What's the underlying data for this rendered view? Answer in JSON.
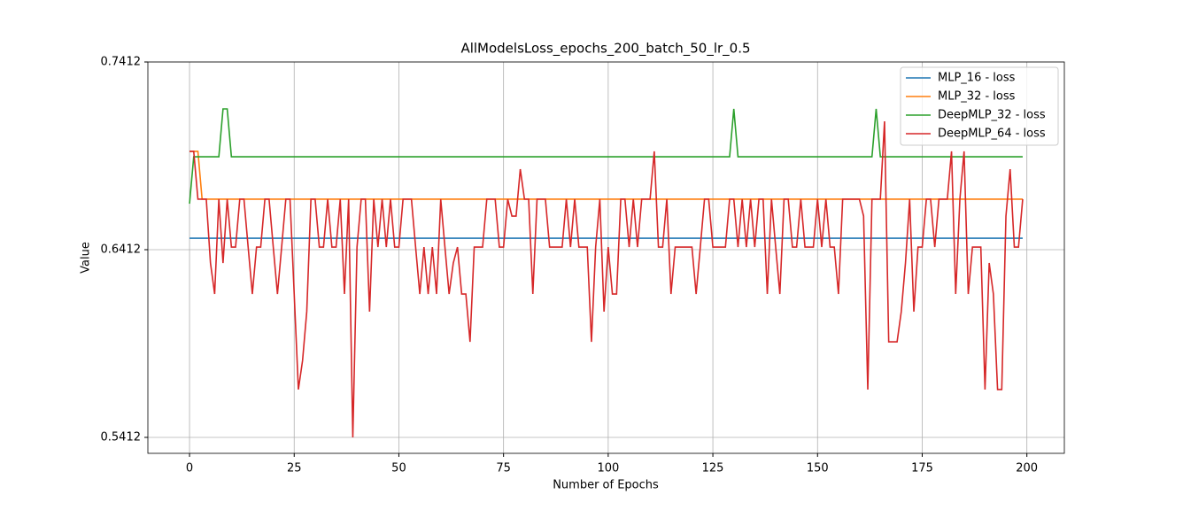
{
  "chart_data": {
    "type": "line",
    "title": "AllModelsLoss_epochs_200_batch_50_lr_0.5",
    "xlabel": "Number of Epochs",
    "ylabel": "Value",
    "xlim": [
      -9.95,
      208.95
    ],
    "ylim": [
      0.5327,
      0.7412
    ],
    "xticks": [
      0,
      25,
      50,
      75,
      100,
      125,
      150,
      175,
      200
    ],
    "yticks": [
      0.5412,
      0.6412,
      0.7412
    ],
    "grid": true,
    "legend": "upper right",
    "x": [
      0,
      1,
      2,
      3,
      4,
      5,
      6,
      7,
      8,
      9,
      10,
      11,
      12,
      13,
      14,
      15,
      16,
      17,
      18,
      19,
      20,
      21,
      22,
      23,
      24,
      25,
      26,
      27,
      28,
      29,
      30,
      31,
      32,
      33,
      34,
      35,
      36,
      37,
      38,
      39,
      40,
      41,
      42,
      43,
      44,
      45,
      46,
      47,
      48,
      49,
      50,
      51,
      52,
      53,
      54,
      55,
      56,
      57,
      58,
      59,
      60,
      61,
      62,
      63,
      64,
      65,
      66,
      67,
      68,
      69,
      70,
      71,
      72,
      73,
      74,
      75,
      76,
      77,
      78,
      79,
      80,
      81,
      82,
      83,
      84,
      85,
      86,
      87,
      88,
      89,
      90,
      91,
      92,
      93,
      94,
      95,
      96,
      97,
      98,
      99,
      100,
      101,
      102,
      103,
      104,
      105,
      106,
      107,
      108,
      109,
      110,
      111,
      112,
      113,
      114,
      115,
      116,
      117,
      118,
      119,
      120,
      121,
      122,
      123,
      124,
      125,
      126,
      127,
      128,
      129,
      130,
      131,
      132,
      133,
      134,
      135,
      136,
      137,
      138,
      139,
      140,
      141,
      142,
      143,
      144,
      145,
      146,
      147,
      148,
      149,
      150,
      151,
      152,
      153,
      154,
      155,
      156,
      157,
      158,
      159,
      160,
      161,
      162,
      163,
      164,
      165,
      166,
      167,
      168,
      169,
      170,
      171,
      172,
      173,
      174,
      175,
      176,
      177,
      178,
      179,
      180,
      181,
      182,
      183,
      184,
      185,
      186,
      187,
      188,
      189,
      190,
      191,
      192,
      193,
      194,
      195,
      196,
      197,
      198,
      199
    ],
    "series": [
      {
        "name": "MLP_16 - loss",
        "color": "#1f77b4",
        "values": [
          0.6473,
          0.6473,
          0.6473,
          0.6473,
          0.6473,
          0.6473,
          0.6473,
          0.6473,
          0.6473,
          0.6473,
          0.6473,
          0.6473,
          0.6473,
          0.6473,
          0.6473,
          0.6473,
          0.6473,
          0.6473,
          0.6473,
          0.6473,
          0.6473,
          0.6473,
          0.6473,
          0.6473,
          0.6473,
          0.6473,
          0.6473,
          0.6473,
          0.6473,
          0.6473,
          0.6473,
          0.6473,
          0.6473,
          0.6473,
          0.6473,
          0.6473,
          0.6473,
          0.6473,
          0.6473,
          0.6473,
          0.6473,
          0.6473,
          0.6473,
          0.6473,
          0.6473,
          0.6473,
          0.6473,
          0.6473,
          0.6473,
          0.6473,
          0.6473,
          0.6473,
          0.6473,
          0.6473,
          0.6473,
          0.6473,
          0.6473,
          0.6473,
          0.6473,
          0.6473,
          0.6473,
          0.6473,
          0.6473,
          0.6473,
          0.6473,
          0.6473,
          0.6473,
          0.6473,
          0.6473,
          0.6473,
          0.6473,
          0.6473,
          0.6473,
          0.6473,
          0.6473,
          0.6473,
          0.6473,
          0.6473,
          0.6473,
          0.6473,
          0.6473,
          0.6473,
          0.6473,
          0.6473,
          0.6473,
          0.6473,
          0.6473,
          0.6473,
          0.6473,
          0.6473,
          0.6473,
          0.6473,
          0.6473,
          0.6473,
          0.6473,
          0.6473,
          0.6473,
          0.6473,
          0.6473,
          0.6473,
          0.6473,
          0.6473,
          0.6473,
          0.6473,
          0.6473,
          0.6473,
          0.6473,
          0.6473,
          0.6473,
          0.6473,
          0.6473,
          0.6473,
          0.6473,
          0.6473,
          0.6473,
          0.6473,
          0.6473,
          0.6473,
          0.6473,
          0.6473,
          0.6473,
          0.6473,
          0.6473,
          0.6473,
          0.6473,
          0.6473,
          0.6473,
          0.6473,
          0.6473,
          0.6473,
          0.6473,
          0.6473,
          0.6473,
          0.6473,
          0.6473,
          0.6473,
          0.6473,
          0.6473,
          0.6473,
          0.6473,
          0.6473,
          0.6473,
          0.6473,
          0.6473,
          0.6473,
          0.6473,
          0.6473,
          0.6473,
          0.6473,
          0.6473,
          0.6473,
          0.6473,
          0.6473,
          0.6473,
          0.6473,
          0.6473,
          0.6473,
          0.6473,
          0.6473,
          0.6473,
          0.6473,
          0.6473,
          0.6473,
          0.6473,
          0.6473,
          0.6473,
          0.6473,
          0.6473,
          0.6473,
          0.6473,
          0.6473,
          0.6473,
          0.6473,
          0.6473,
          0.6473,
          0.6473,
          0.6473,
          0.6473,
          0.6473,
          0.6473,
          0.6473,
          0.6473,
          0.6473,
          0.6473,
          0.6473,
          0.6473,
          0.6473,
          0.6473,
          0.6473,
          0.6473,
          0.6473,
          0.6473,
          0.6473,
          0.6473,
          0.6473,
          0.6473,
          0.6473,
          0.6473,
          0.6473,
          0.6473
        ]
      },
      {
        "name": "MLP_32 - loss",
        "color": "#ff7f0e",
        "values": [
          0.6936,
          0.6936,
          0.6936,
          0.6681,
          0.6681,
          0.6681,
          0.6681,
          0.6681,
          0.6681,
          0.6681,
          0.6681,
          0.6681,
          0.6681,
          0.6681,
          0.6681,
          0.6681,
          0.6681,
          0.6681,
          0.6681,
          0.6681,
          0.6681,
          0.6681,
          0.6681,
          0.6681,
          0.6681,
          0.6681,
          0.6681,
          0.6681,
          0.6681,
          0.6681,
          0.6681,
          0.6681,
          0.6681,
          0.6681,
          0.6681,
          0.6681,
          0.6681,
          0.6681,
          0.6681,
          0.6681,
          0.6681,
          0.6681,
          0.6681,
          0.6681,
          0.6681,
          0.6681,
          0.6681,
          0.6681,
          0.6681,
          0.6681,
          0.6681,
          0.6681,
          0.6681,
          0.6681,
          0.6681,
          0.6681,
          0.6681,
          0.6681,
          0.6681,
          0.6681,
          0.6681,
          0.6681,
          0.6681,
          0.6681,
          0.6681,
          0.6681,
          0.6681,
          0.6681,
          0.6681,
          0.6681,
          0.6681,
          0.6681,
          0.6681,
          0.6681,
          0.6681,
          0.6681,
          0.6681,
          0.6681,
          0.6681,
          0.6681,
          0.6681,
          0.6681,
          0.6681,
          0.6681,
          0.6681,
          0.6681,
          0.6681,
          0.6681,
          0.6681,
          0.6681,
          0.6681,
          0.6681,
          0.6681,
          0.6681,
          0.6681,
          0.6681,
          0.6681,
          0.6681,
          0.6681,
          0.6681,
          0.6681,
          0.6681,
          0.6681,
          0.6681,
          0.6681,
          0.6681,
          0.6681,
          0.6681,
          0.6681,
          0.6681,
          0.6681,
          0.6681,
          0.6681,
          0.6681,
          0.6681,
          0.6681,
          0.6681,
          0.6681,
          0.6681,
          0.6681,
          0.6681,
          0.6681,
          0.6681,
          0.6681,
          0.6681,
          0.6681,
          0.6681,
          0.6681,
          0.6681,
          0.6681,
          0.6681,
          0.6681,
          0.6681,
          0.6681,
          0.6681,
          0.6681,
          0.6681,
          0.6681,
          0.6681,
          0.6681,
          0.6681,
          0.6681,
          0.6681,
          0.6681,
          0.6681,
          0.6681,
          0.6681,
          0.6681,
          0.6681,
          0.6681,
          0.6681,
          0.6681,
          0.6681,
          0.6681,
          0.6681,
          0.6681,
          0.6681,
          0.6681,
          0.6681,
          0.6681,
          0.6681,
          0.6681,
          0.6681,
          0.6681,
          0.6681,
          0.6681,
          0.6681,
          0.6681,
          0.6681,
          0.6681,
          0.6681,
          0.6681,
          0.6681,
          0.6681,
          0.6681,
          0.6681,
          0.6681,
          0.6681,
          0.6681,
          0.6681,
          0.6681,
          0.6681,
          0.6681,
          0.6681,
          0.6681,
          0.6681,
          0.6681,
          0.6681,
          0.6681,
          0.6681,
          0.6681,
          0.6681,
          0.6681,
          0.6681,
          0.6681,
          0.6681,
          0.6681,
          0.6681,
          0.6681,
          0.6681
        ]
      },
      {
        "name": "DeepMLP_32 - loss",
        "color": "#2ca02c",
        "values": [
          0.6657,
          0.6907,
          0.6907,
          0.6907,
          0.6907,
          0.6907,
          0.6907,
          0.6907,
          0.7162,
          0.7162,
          0.6907,
          0.6907,
          0.6907,
          0.6907,
          0.6907,
          0.6907,
          0.6907,
          0.6907,
          0.6907,
          0.6907,
          0.6907,
          0.6907,
          0.6907,
          0.6907,
          0.6907,
          0.6907,
          0.6907,
          0.6907,
          0.6907,
          0.6907,
          0.6907,
          0.6907,
          0.6907,
          0.6907,
          0.6907,
          0.6907,
          0.6907,
          0.6907,
          0.6907,
          0.6907,
          0.6907,
          0.6907,
          0.6907,
          0.6907,
          0.6907,
          0.6907,
          0.6907,
          0.6907,
          0.6907,
          0.6907,
          0.6907,
          0.6907,
          0.6907,
          0.6907,
          0.6907,
          0.6907,
          0.6907,
          0.6907,
          0.6907,
          0.6907,
          0.6907,
          0.6907,
          0.6907,
          0.6907,
          0.6907,
          0.6907,
          0.6907,
          0.6907,
          0.6907,
          0.6907,
          0.6907,
          0.6907,
          0.6907,
          0.6907,
          0.6907,
          0.6907,
          0.6907,
          0.6907,
          0.6907,
          0.6907,
          0.6907,
          0.6907,
          0.6907,
          0.6907,
          0.6907,
          0.6907,
          0.6907,
          0.6907,
          0.6907,
          0.6907,
          0.6907,
          0.6907,
          0.6907,
          0.6907,
          0.6907,
          0.6907,
          0.6907,
          0.6907,
          0.6907,
          0.6907,
          0.6907,
          0.6907,
          0.6907,
          0.6907,
          0.6907,
          0.6907,
          0.6907,
          0.6907,
          0.6907,
          0.6907,
          0.6907,
          0.6907,
          0.6907,
          0.6907,
          0.6907,
          0.6907,
          0.6907,
          0.6907,
          0.6907,
          0.6907,
          0.6907,
          0.6907,
          0.6907,
          0.6907,
          0.6907,
          0.6907,
          0.6907,
          0.6907,
          0.6907,
          0.6907,
          0.7162,
          0.6907,
          0.6907,
          0.6907,
          0.6907,
          0.6907,
          0.6907,
          0.6907,
          0.6907,
          0.6907,
          0.6907,
          0.6907,
          0.6907,
          0.6907,
          0.6907,
          0.6907,
          0.6907,
          0.6907,
          0.6907,
          0.6907,
          0.6907,
          0.6907,
          0.6907,
          0.6907,
          0.6907,
          0.6907,
          0.6907,
          0.6907,
          0.6907,
          0.6907,
          0.6907,
          0.6907,
          0.6907,
          0.6907,
          0.7162,
          0.6907,
          0.6907,
          0.6907,
          0.6907,
          0.6907,
          0.6907,
          0.6907,
          0.6907,
          0.6907,
          0.6907,
          0.6907,
          0.6907,
          0.6907,
          0.6907,
          0.6907,
          0.6907,
          0.6907,
          0.6907,
          0.6907,
          0.6907,
          0.6907,
          0.6907,
          0.6907,
          0.6907,
          0.6907,
          0.6907,
          0.6907,
          0.6907,
          0.6907,
          0.6907,
          0.6907,
          0.6907,
          0.6907,
          0.6907,
          0.6907
        ]
      },
      {
        "name": "DeepMLP_64 - loss",
        "color": "#d62728",
        "values": [
          0.6936,
          0.6936,
          0.6681,
          0.6681,
          0.6681,
          0.6341,
          0.6176,
          0.6681,
          0.6341,
          0.6681,
          0.6426,
          0.6426,
          0.6681,
          0.6681,
          0.6426,
          0.6176,
          0.6426,
          0.6426,
          0.6681,
          0.6681,
          0.6426,
          0.6176,
          0.6426,
          0.6681,
          0.6681,
          0.6176,
          0.5667,
          0.5822,
          0.6082,
          0.6681,
          0.6681,
          0.6426,
          0.6426,
          0.6681,
          0.6426,
          0.6426,
          0.6681,
          0.6176,
          0.6681,
          0.5412,
          0.6426,
          0.6681,
          0.6681,
          0.6082,
          0.6681,
          0.6426,
          0.6681,
          0.6426,
          0.6681,
          0.6426,
          0.6426,
          0.6681,
          0.6681,
          0.6681,
          0.6426,
          0.6176,
          0.6426,
          0.6176,
          0.6426,
          0.6176,
          0.6681,
          0.6426,
          0.6176,
          0.6341,
          0.6426,
          0.6176,
          0.6176,
          0.5921,
          0.6426,
          0.6426,
          0.6426,
          0.6681,
          0.6681,
          0.6681,
          0.6426,
          0.6426,
          0.6681,
          0.6591,
          0.6591,
          0.6841,
          0.6681,
          0.6681,
          0.6176,
          0.6681,
          0.6681,
          0.6681,
          0.6426,
          0.6426,
          0.6426,
          0.6426,
          0.6681,
          0.6426,
          0.6681,
          0.6426,
          0.6426,
          0.6426,
          0.5921,
          0.6426,
          0.6681,
          0.6082,
          0.6426,
          0.6176,
          0.6176,
          0.6681,
          0.6681,
          0.6426,
          0.6681,
          0.6426,
          0.6681,
          0.6681,
          0.6681,
          0.6936,
          0.6426,
          0.6426,
          0.6681,
          0.6176,
          0.6426,
          0.6426,
          0.6426,
          0.6426,
          0.6426,
          0.6176,
          0.6426,
          0.6681,
          0.6681,
          0.6426,
          0.6426,
          0.6426,
          0.6426,
          0.6681,
          0.6681,
          0.6426,
          0.6681,
          0.6426,
          0.6681,
          0.6426,
          0.6681,
          0.6681,
          0.6176,
          0.6681,
          0.6426,
          0.6176,
          0.6681,
          0.6681,
          0.6426,
          0.6426,
          0.6681,
          0.6426,
          0.6426,
          0.6426,
          0.6681,
          0.6426,
          0.6681,
          0.6426,
          0.6426,
          0.6176,
          0.6681,
          0.6681,
          0.6681,
          0.6681,
          0.6681,
          0.6591,
          0.5667,
          0.6681,
          0.6681,
          0.6681,
          0.7096,
          0.5921,
          0.5921,
          0.5921,
          0.6082,
          0.6341,
          0.6681,
          0.6082,
          0.6426,
          0.6426,
          0.6681,
          0.6681,
          0.6426,
          0.6681,
          0.6681,
          0.6681,
          0.6936,
          0.6176,
          0.6681,
          0.6936,
          0.6176,
          0.6426,
          0.6426,
          0.6426,
          0.5667,
          0.6341,
          0.6176,
          0.5667,
          0.5667,
          0.6591,
          0.6841,
          0.6426,
          0.6426,
          0.6681
        ]
      }
    ]
  }
}
